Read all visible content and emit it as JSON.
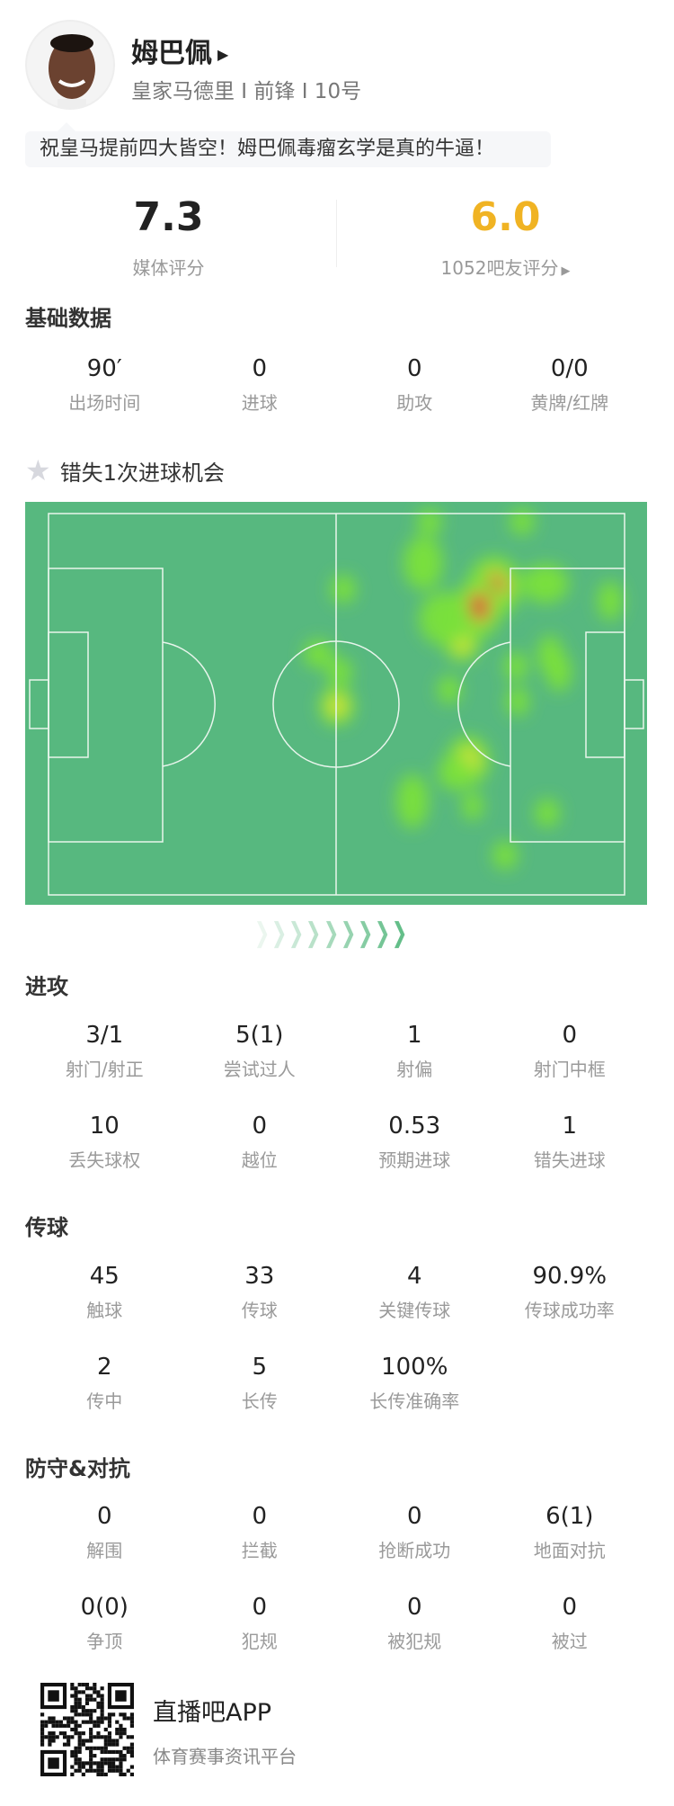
{
  "player": {
    "name": "姆巴佩",
    "team_line": "皇家马德里 I 前锋 I 10号",
    "comment": "祝皇马提前四大皆空！姆巴佩毒瘤玄学是真的牛逼！"
  },
  "ratings": {
    "media_value": "7.3",
    "media_label": "媒体评分",
    "fan_value": "6.0",
    "fan_label": "1052吧友评分",
    "fan_color": "#f0b323"
  },
  "basic": {
    "title": "基础数据",
    "stats": [
      {
        "v": "90′",
        "l": "出场时间"
      },
      {
        "v": "0",
        "l": "进球"
      },
      {
        "v": "0",
        "l": "助攻"
      },
      {
        "v": "0/0",
        "l": "黄牌/红牌"
      }
    ]
  },
  "missed": {
    "text": "错失1次进球机会",
    "icon": "star-icon"
  },
  "heatmap": {
    "pitch_color": "#57b87f"
  },
  "attack": {
    "title": "进攻",
    "stats": [
      {
        "v": "3/1",
        "l": "射门/射正"
      },
      {
        "v": "5(1)",
        "l": "尝试过人"
      },
      {
        "v": "1",
        "l": "射偏"
      },
      {
        "v": "0",
        "l": "射门中框"
      },
      {
        "v": "10",
        "l": "丢失球权"
      },
      {
        "v": "0",
        "l": "越位"
      },
      {
        "v": "0.53",
        "l": "预期进球"
      },
      {
        "v": "1",
        "l": "错失进球"
      }
    ]
  },
  "passing": {
    "title": "传球",
    "stats": [
      {
        "v": "45",
        "l": "触球"
      },
      {
        "v": "33",
        "l": "传球"
      },
      {
        "v": "4",
        "l": "关键传球"
      },
      {
        "v": "90.9%",
        "l": "传球成功率"
      },
      {
        "v": "2",
        "l": "传中"
      },
      {
        "v": "5",
        "l": "长传"
      },
      {
        "v": "100%",
        "l": "长传准确率"
      }
    ]
  },
  "defense": {
    "title": "防守&对抗",
    "stats": [
      {
        "v": "0",
        "l": "解围"
      },
      {
        "v": "0",
        "l": "拦截"
      },
      {
        "v": "0",
        "l": "抢断成功"
      },
      {
        "v": "6(1)",
        "l": "地面对抗"
      },
      {
        "v": "0(0)",
        "l": "争顶"
      },
      {
        "v": "0",
        "l": "犯规"
      },
      {
        "v": "0",
        "l": "被犯规"
      },
      {
        "v": "0",
        "l": "被过"
      }
    ]
  },
  "footer": {
    "app_name": "直播吧APP",
    "tagline": "体育赛事资讯平台"
  }
}
